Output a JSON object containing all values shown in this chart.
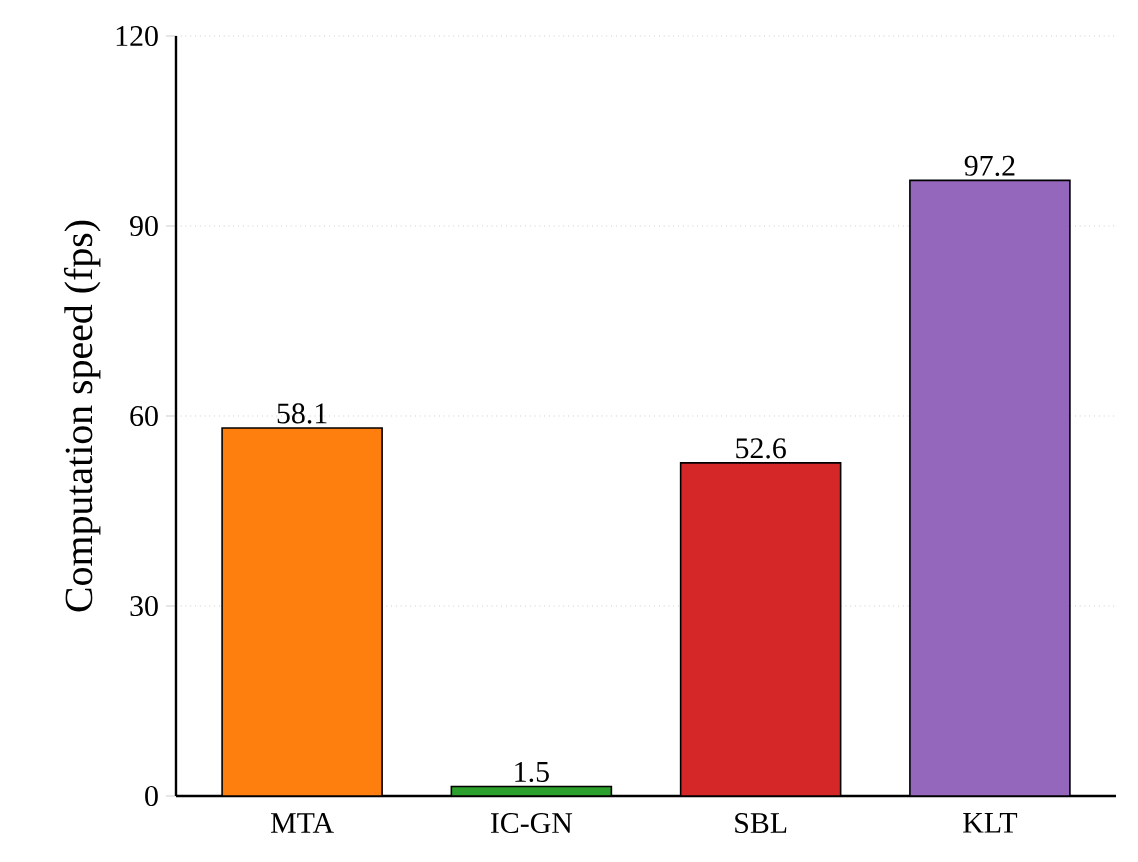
{
  "chart_data": {
    "type": "bar",
    "ylabel": "Computation speed  (fps)",
    "categories": [
      "MTA",
      "IC-GN",
      "SBL",
      "KLT"
    ],
    "values": [
      58.1,
      1.5,
      52.6,
      97.2
    ],
    "colors": [
      "#ff7f0e",
      "#2ca02c",
      "#d62728",
      "#9467bd"
    ],
    "ylim": [
      0,
      120
    ],
    "yticks": [
      0,
      30,
      60,
      90,
      120
    ],
    "grid": "y",
    "data_labels": true
  }
}
